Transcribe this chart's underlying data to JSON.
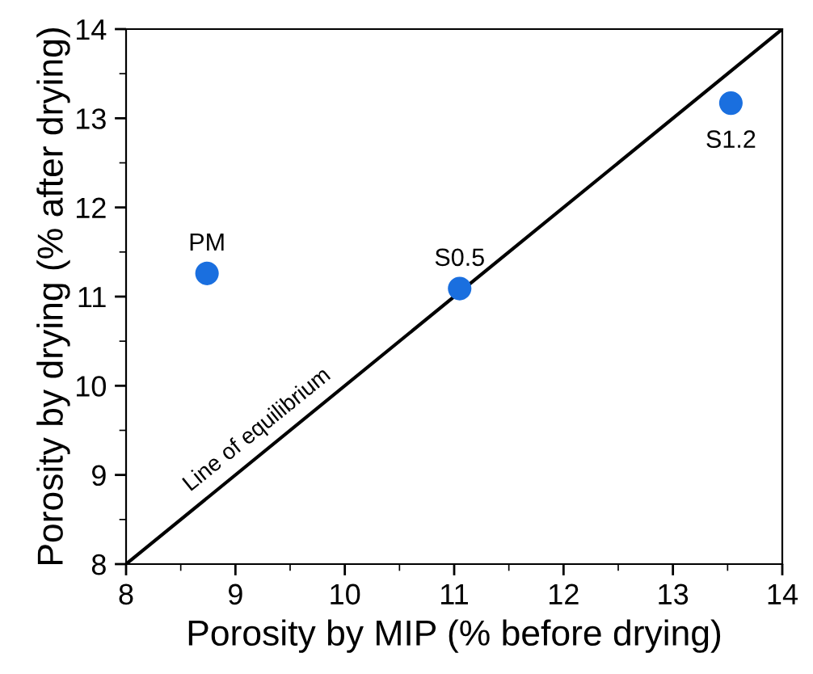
{
  "chart_data": {
    "type": "scatter",
    "xlabel": "Porosity by MIP (% before drying)",
    "ylabel": "Porosity by drying (% after drying)",
    "xlim": [
      8,
      14
    ],
    "ylim": [
      8,
      14
    ],
    "xticks": [
      8,
      9,
      10,
      11,
      12,
      13,
      14
    ],
    "yticks": [
      8,
      9,
      10,
      11,
      12,
      13,
      14
    ],
    "grid": false,
    "marker": "circle",
    "series": [
      {
        "color": "#1a6fdf",
        "x": [
          8.74,
          11.05,
          13.53
        ],
        "values": [
          11.26,
          11.09,
          13.17
        ]
      },
      {
        "type": "line",
        "color": "#000000",
        "x": [
          8,
          14
        ],
        "values": [
          8,
          14
        ],
        "line_style": "solid",
        "marker": "none"
      }
    ],
    "annotations": [
      {
        "text": "PM",
        "x": 8.74,
        "y": 11.26
      },
      {
        "text": "S0.5",
        "x": 11.05,
        "y": 11.09
      },
      {
        "text": "S1.2",
        "x": 13.53,
        "y": 13.17
      },
      "Line of equilibrium"
    ]
  }
}
